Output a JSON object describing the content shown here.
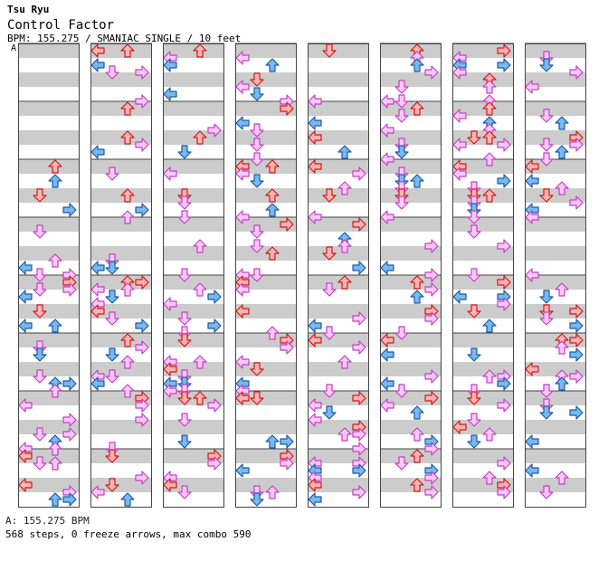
{
  "header": {
    "artist": "Tsu Ryu",
    "title": "Control Factor",
    "info": "BPM: 155.275 / SMANIAC SINGLE / 10 feet",
    "bpm_marker": "A"
  },
  "footer": {
    "bpm_line": "A: 155.275 BPM",
    "stats": "568 steps, 0 freeze arrows, max combo 590"
  },
  "chart": {
    "columns": 8,
    "measures_per_column": 8,
    "colors": {
      "red_fill": "#ffb3b3",
      "red_stroke": "#d01818",
      "blue_fill": "#7ab8f0",
      "blue_stroke": "#1a5aa8",
      "pink_fill": "#ffc8ff",
      "pink_stroke": "#c040c0",
      "stripe": "#cccccc",
      "border": "#444444"
    },
    "arrow_icons": [
      "left-arrow-icon",
      "down-arrow-icon",
      "up-arrow-icon",
      "right-arrow-icon"
    ]
  }
}
